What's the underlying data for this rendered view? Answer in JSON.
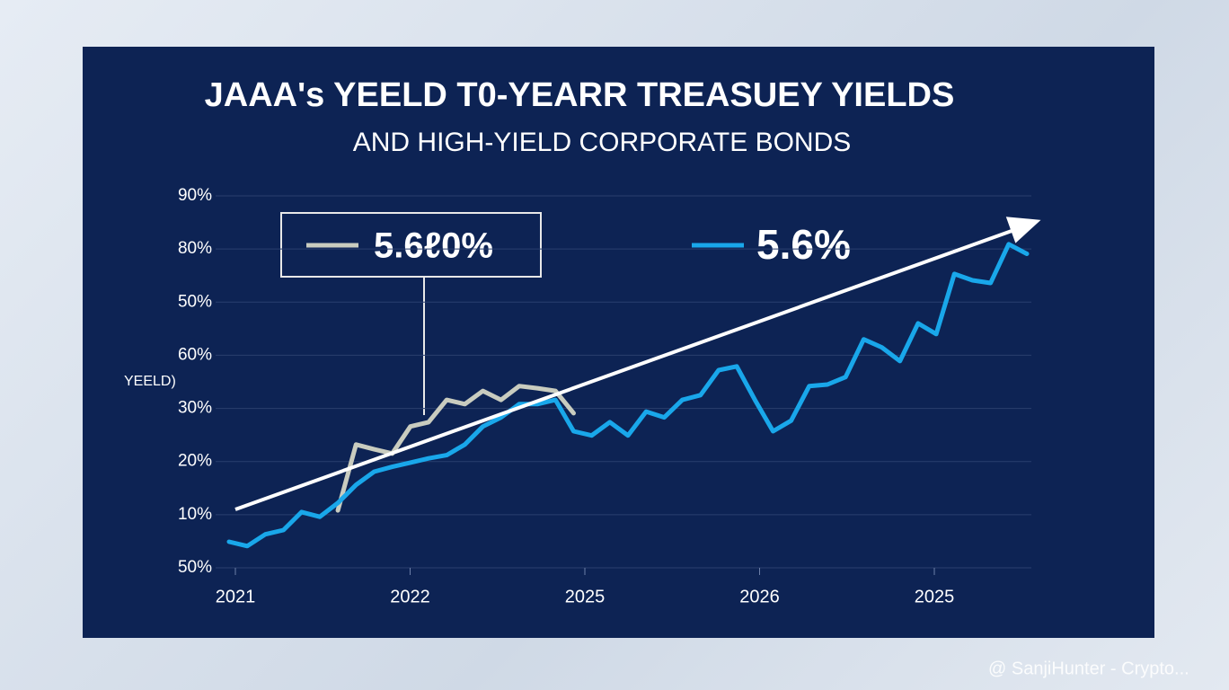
{
  "chart_data": {
    "type": "line",
    "title": "JAAA's YEELD T0-YEARR TREASUEY YIELDS",
    "subtitle": "AND HIGH-YIELD CORPORATE BONDS",
    "y_axis_label": "YEELD)",
    "y_axis_labels": [
      "90%",
      "80%",
      "50%",
      "60%",
      "30%",
      "20%",
      "10%",
      "50%"
    ],
    "x_labels": [
      "2021",
      "2022",
      "2025",
      "2026",
      "2025"
    ],
    "ylim": [
      0,
      7
    ],
    "series": [
      {
        "name": "5.6%",
        "color": "#19a7ea",
        "values": [
          0.49,
          0.41,
          0.63,
          0.71,
          1.05,
          0.96,
          1.22,
          1.56,
          1.81,
          1.9,
          1.98,
          2.06,
          2.12,
          2.32,
          2.66,
          2.83,
          3.08,
          3.08,
          3.16,
          2.57,
          2.49,
          2.74,
          2.49,
          2.94,
          2.83,
          3.16,
          3.25,
          3.72,
          3.79,
          3.16,
          2.57,
          2.77,
          3.42,
          3.45,
          3.59,
          4.3,
          4.15,
          3.89,
          4.6,
          4.4,
          5.53,
          5.41,
          5.36,
          6.09,
          5.91
        ]
      },
      {
        "name": "5.6ℓ0%",
        "color": "#c9ccbf",
        "values": [
          null,
          null,
          null,
          null,
          null,
          null,
          1.08,
          2.32,
          2.23,
          2.15,
          2.66,
          2.74,
          3.16,
          3.08,
          3.33,
          3.16,
          3.42,
          3.38,
          3.33,
          2.91,
          null,
          null,
          null,
          null,
          null,
          null,
          null,
          null,
          null,
          null,
          null,
          null,
          null,
          null,
          null,
          null,
          null,
          null,
          null,
          null,
          null,
          null,
          null,
          null,
          null
        ]
      }
    ],
    "watermark": "@ SanjiHunter - Crypto..."
  }
}
